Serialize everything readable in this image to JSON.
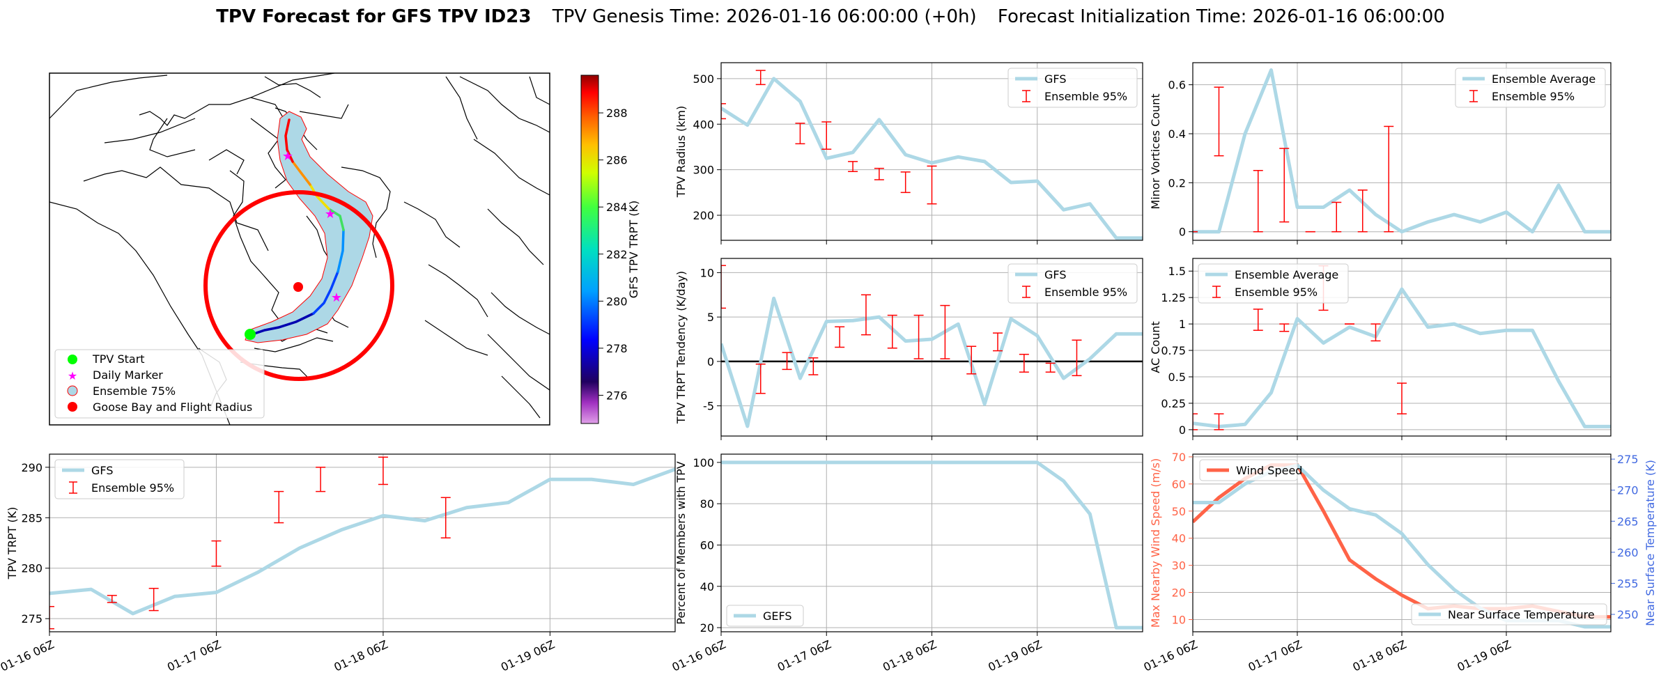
{
  "header": {
    "title_bold": "TPV Forecast for GFS TPV ID23",
    "genesis": "TPV Genesis Time: 2026-01-16 06:00:00 (+0h)",
    "init": "Forecast Initialization Time: 2026-01-16 06:00:00"
  },
  "colors": {
    "gfs": "#add8e6",
    "err": "#ff0000",
    "wind": "#ff6347",
    "temp_axis": "#4169e1",
    "track_shade": "#add8e6",
    "flight_circle": "#ff0000",
    "start_marker": "#00ff00",
    "daily_marker": "#ff00ff"
  },
  "map": {
    "legend": [
      "TPV Start",
      "Daily Marker",
      "Ensemble 75%",
      "Goose Bay and Flight Radius"
    ],
    "colorbar_label": "GFS TPV TRPT (K)",
    "colorbar_ticks": [
      276,
      278,
      280,
      282,
      284,
      286,
      288
    ],
    "colorbar_range": [
      274.8,
      289.6
    ]
  },
  "chart_data": [
    {
      "id": "trpt",
      "type": "line",
      "x": [
        0,
        1,
        2,
        3,
        4,
        5,
        6,
        7,
        8,
        9,
        10,
        11,
        12,
        13,
        14,
        15
      ],
      "xticks": [
        "01-16 06Z",
        "01-17 06Z",
        "01-18 06Z",
        "01-19 06Z"
      ],
      "ylabel": "TPV TRPT (K)",
      "ylim": [
        273.7,
        291.3
      ],
      "yticks": [
        275,
        280,
        285,
        290
      ],
      "series": [
        {
          "name": "GFS",
          "values": [
            277.5,
            277.9,
            275.5,
            277.2,
            277.6,
            279.6,
            282.0,
            283.8,
            285.2,
            284.7,
            286.0,
            286.5,
            288.8,
            288.8,
            288.3,
            289.8
          ]
        }
      ],
      "errorbars": {
        "name": "Ensemble 95%",
        "points": [
          [
            0,
            274.0,
            276.2
          ],
          [
            3,
            276.6,
            277.3
          ],
          [
            5,
            275.8,
            278.0
          ],
          [
            8,
            280.2,
            282.7
          ],
          [
            11,
            284.5,
            287.6
          ],
          [
            13,
            287.6,
            290.0
          ],
          [
            16,
            288.3,
            291.0
          ],
          [
            19,
            283.0,
            287.0
          ]
        ]
      },
      "xmax": 15
    },
    {
      "id": "radius",
      "type": "line",
      "x": [
        0,
        1,
        2,
        3,
        4,
        5,
        6,
        7,
        8,
        9,
        10,
        11,
        12,
        13,
        14,
        15,
        16
      ],
      "xticks": [
        "01-16 06Z",
        "01-17 06Z",
        "01-18 06Z",
        "01-19 06Z"
      ],
      "ylabel": "TPV Radius (km)",
      "ylim": [
        145,
        535
      ],
      "yticks": [
        200,
        300,
        400,
        500
      ],
      "series": [
        {
          "name": "GFS",
          "values": [
            435,
            398,
            500,
            450,
            325,
            338,
            410,
            333,
            315,
            328,
            318,
            272,
            275,
            212,
            225,
            150,
            150
          ]
        }
      ],
      "errorbars": {
        "name": "Ensemble 95%",
        "points": [
          [
            0,
            412,
            445
          ],
          [
            3,
            487,
            518
          ],
          [
            6,
            357,
            402
          ],
          [
            8,
            345,
            405
          ],
          [
            10,
            296,
            318
          ],
          [
            12,
            278,
            303
          ],
          [
            14,
            250,
            295
          ],
          [
            16,
            225,
            308
          ]
        ]
      },
      "xmax": 16
    },
    {
      "id": "minor",
      "type": "line",
      "x": [
        0,
        1,
        2,
        3,
        4,
        5,
        6,
        7,
        8,
        9,
        10,
        11,
        12,
        13,
        14,
        15,
        16
      ],
      "xticks": [
        "01-16 06Z",
        "01-17 06Z",
        "01-18 06Z",
        "01-19 06Z"
      ],
      "ylabel": "Minor Vortices Count",
      "ylim": [
        -0.035,
        0.69
      ],
      "yticks": [
        0.0,
        0.2,
        0.4,
        0.6
      ],
      "series": [
        {
          "name": "Ensemble Average",
          "values": [
            0.0,
            0.0,
            0.4,
            0.66,
            0.1,
            0.1,
            0.17,
            0.07,
            0.0,
            0.04,
            0.07,
            0.04,
            0.08,
            0.0,
            0.19,
            0.0,
            0.0
          ]
        }
      ],
      "errorbars": {
        "name": "Ensemble 95%",
        "points": [
          [
            0,
            0.0,
            0.0
          ],
          [
            2,
            0.31,
            0.59
          ],
          [
            5,
            0.0,
            0.25
          ],
          [
            7,
            0.04,
            0.34
          ],
          [
            9,
            0.0,
            0.0
          ],
          [
            11,
            0.0,
            0.12
          ],
          [
            13,
            0.0,
            0.17
          ],
          [
            15,
            0.0,
            0.43
          ]
        ]
      },
      "xmax": 16
    },
    {
      "id": "tendency",
      "type": "line",
      "x": [
        0,
        1,
        2,
        3,
        4,
        5,
        6,
        7,
        8,
        9,
        10,
        11,
        12,
        13,
        14,
        15,
        16
      ],
      "xticks": [
        "01-16 06Z",
        "01-17 06Z",
        "01-18 06Z",
        "01-19 06Z"
      ],
      "ylabel": "TPV TRPT Tendency (K/day)",
      "ylim": [
        -8.4,
        11.6
      ],
      "yticks": [
        -5,
        0,
        5,
        10
      ],
      "series": [
        {
          "name": "GFS",
          "values": [
            2.0,
            -7.3,
            7.1,
            -1.9,
            4.5,
            4.6,
            5.0,
            2.3,
            2.5,
            4.2,
            -4.8,
            4.8,
            2.9,
            -1.9,
            0.3,
            3.1,
            3.1
          ]
        }
      ],
      "errorbars": {
        "name": "Ensemble 95%",
        "points": [
          [
            0,
            6.0,
            10.8
          ],
          [
            3,
            -3.6,
            -0.3
          ],
          [
            5,
            -0.9,
            1.0
          ],
          [
            7,
            -1.5,
            0.4
          ],
          [
            9,
            1.6,
            3.9
          ],
          [
            11,
            3.0,
            7.5
          ],
          [
            13,
            1.5,
            5.2
          ],
          [
            15,
            0.3,
            5.2
          ],
          [
            17,
            0.3,
            6.3
          ],
          [
            19,
            -1.4,
            1.7
          ],
          [
            21,
            1.2,
            3.2
          ],
          [
            23,
            -1.2,
            0.8
          ],
          [
            25,
            -1.2,
            -0.2
          ],
          [
            27,
            -1.6,
            2.4
          ]
        ]
      },
      "zero_line": true,
      "xmax": 16
    },
    {
      "id": "ac",
      "type": "line",
      "x": [
        0,
        1,
        2,
        3,
        4,
        5,
        6,
        7,
        8,
        9,
        10,
        11,
        12,
        13,
        14,
        15,
        16
      ],
      "xticks": [
        "01-16 06Z",
        "01-17 06Z",
        "01-18 06Z",
        "01-19 06Z"
      ],
      "ylabel": "AC Count",
      "ylim": [
        -0.06,
        1.62
      ],
      "yticks": [
        0.0,
        0.25,
        0.5,
        0.75,
        1.0,
        1.25,
        1.5
      ],
      "series": [
        {
          "name": "Ensemble Average",
          "values": [
            0.06,
            0.03,
            0.05,
            0.35,
            1.05,
            0.82,
            0.97,
            0.88,
            1.33,
            0.97,
            1.0,
            0.91,
            0.94,
            0.94,
            0.46,
            0.03,
            0.03
          ]
        }
      ],
      "errorbars": {
        "name": "Ensemble 95%",
        "points": [
          [
            0,
            0.0,
            0.15
          ],
          [
            2,
            0.0,
            0.15
          ],
          [
            5,
            0.94,
            1.14
          ],
          [
            7,
            0.93,
            1.0
          ],
          [
            10,
            1.13,
            1.55
          ],
          [
            12,
            1.0,
            1.0
          ],
          [
            14,
            0.84,
            1.0
          ],
          [
            16,
            0.15,
            0.44
          ]
        ]
      },
      "xmax": 16
    },
    {
      "id": "percent",
      "type": "line",
      "x": [
        0,
        1,
        2,
        3,
        4,
        5,
        6,
        7,
        8,
        9,
        10,
        11,
        12,
        13,
        14,
        15,
        16
      ],
      "xticks": [
        "01-16 06Z",
        "01-17 06Z",
        "01-18 06Z",
        "01-19 06Z"
      ],
      "ylabel": "Percent of Members with TPV",
      "ylim": [
        18,
        104
      ],
      "yticks": [
        20,
        40,
        60,
        80,
        100
      ],
      "series": [
        {
          "name": "GEFS",
          "values": [
            100,
            100,
            100,
            100,
            100,
            100,
            100,
            100,
            100,
            100,
            100,
            100,
            100,
            91,
            75,
            20,
            20
          ]
        }
      ],
      "xmax": 16
    },
    {
      "id": "wind_temp",
      "type": "line",
      "x": [
        0,
        1,
        2,
        3,
        4,
        5,
        6,
        7,
        8,
        9,
        10,
        11,
        12,
        13,
        14,
        15,
        16
      ],
      "xticks": [
        "01-16 06Z",
        "01-17 06Z",
        "01-18 06Z",
        "01-19 06Z"
      ],
      "ylabel": "Max Nearby Wind Speed (m/s)",
      "ylabel_right": "Near Surface Temperature (K)",
      "ylim": [
        5.5,
        71
      ],
      "yticks": [
        10,
        20,
        30,
        40,
        50,
        60,
        70
      ],
      "ylim_right": [
        247.2,
        275.8
      ],
      "yticks_right": [
        250,
        255,
        260,
        265,
        270,
        275
      ],
      "series": [
        {
          "name": "Wind Speed",
          "values": [
            46,
            55,
            62,
            67,
            67,
            50,
            32,
            25,
            19,
            14,
            15,
            14,
            14,
            15,
            13,
            11,
            11
          ]
        },
        {
          "name": "Near Surface Temperature",
          "values": [
            268,
            268,
            271,
            273,
            274,
            270,
            267,
            266,
            263,
            258,
            254,
            251,
            249,
            249,
            249,
            248,
            248
          ]
        }
      ],
      "xmax": 16
    }
  ]
}
